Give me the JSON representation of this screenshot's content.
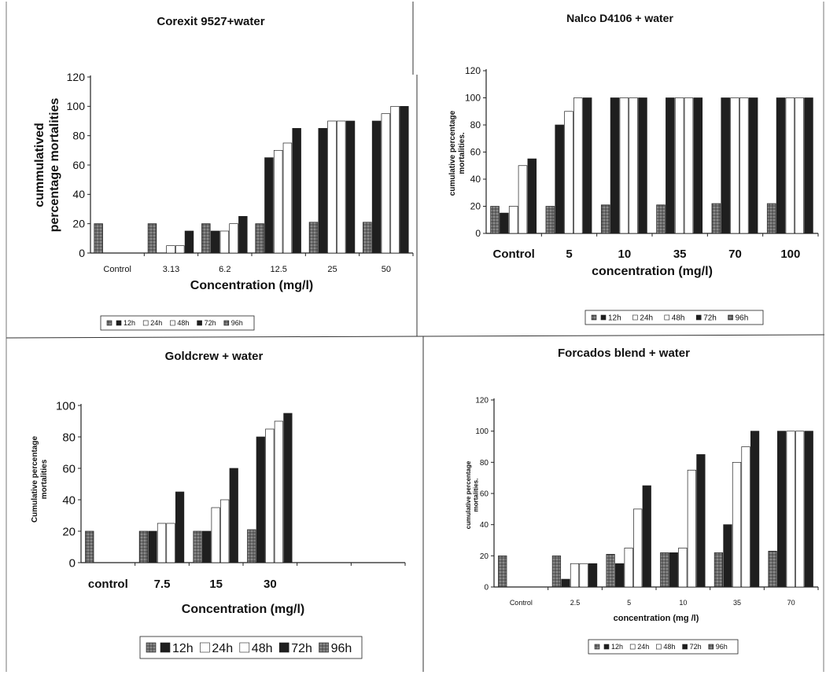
{
  "legend_labels": [
    "12h",
    "24h",
    "48h",
    "72h",
    "96h"
  ],
  "colors": {
    "dark": "#1f1f1f",
    "white": "#ffffff",
    "hatch": "#8a8a8a",
    "hatch_line": "#333333"
  },
  "chart_data": [
    {
      "type": "bar",
      "title": "Corexit 9527+water",
      "xlabel": "Concentration (mg/l)",
      "ylabel": [
        "cummulatived",
        "percentage mortalities"
      ],
      "categories": [
        "Control",
        "3.13",
        "6.2",
        "12.5",
        "25",
        "50"
      ],
      "ylim": [
        0,
        120
      ],
      "yticks": [
        0,
        20,
        40,
        60,
        80,
        100,
        120
      ],
      "legend_placement": "bottom-left",
      "series": [
        {
          "name": "12h",
          "values": [
            20,
            20,
            20,
            20,
            21,
            21
          ]
        },
        {
          "name": "24h",
          "values": [
            0,
            0,
            15,
            65,
            85,
            90
          ]
        },
        {
          "name": "48h",
          "values": [
            0,
            5,
            15,
            70,
            90,
            95
          ]
        },
        {
          "name": "72h",
          "values": [
            0,
            5,
            20,
            75,
            90,
            100
          ]
        },
        {
          "name": "96h",
          "values": [
            0,
            15,
            25,
            85,
            90,
            100
          ]
        }
      ]
    },
    {
      "type": "bar",
      "title": "Nalco D4106 + water",
      "xlabel": "concentration (mg/l)",
      "ylabel": [
        "cumulative percentage",
        "mortalities."
      ],
      "categories": [
        "Control",
        "5",
        "10",
        "35",
        "70",
        "100"
      ],
      "ylim": [
        0,
        120
      ],
      "yticks": [
        0,
        20,
        40,
        60,
        80,
        100,
        120
      ],
      "legend_placement": "bottom-right",
      "series": [
        {
          "name": "12h",
          "values": [
            20,
            20,
            21,
            21,
            22,
            22
          ]
        },
        {
          "name": "24h",
          "values": [
            15,
            80,
            100,
            100,
            100,
            100
          ]
        },
        {
          "name": "48h",
          "values": [
            20,
            90,
            100,
            100,
            100,
            100
          ]
        },
        {
          "name": "72h",
          "values": [
            50,
            100,
            100,
            100,
            100,
            100
          ]
        },
        {
          "name": "96h",
          "values": [
            55,
            100,
            100,
            100,
            100,
            100
          ]
        }
      ]
    },
    {
      "type": "bar",
      "title": "Goldcrew + water",
      "xlabel": "Concentration (mg/l)",
      "ylabel": [
        "Cumulative percentage",
        "mortalities"
      ],
      "categories": [
        "control",
        "7.5",
        "15",
        "30",
        "",
        ""
      ],
      "ylim": [
        0,
        100
      ],
      "yticks": [
        0,
        20,
        40,
        60,
        80,
        100
      ],
      "legend_placement": "bottom",
      "series": [
        {
          "name": "12h",
          "values": [
            20,
            20,
            20,
            21,
            0,
            0
          ]
        },
        {
          "name": "24h",
          "values": [
            0,
            20,
            20,
            80,
            0,
            0
          ]
        },
        {
          "name": "48h",
          "values": [
            0,
            25,
            35,
            85,
            0,
            0
          ]
        },
        {
          "name": "72h",
          "values": [
            0,
            25,
            40,
            90,
            0,
            0
          ]
        },
        {
          "name": "96h",
          "values": [
            0,
            45,
            60,
            95,
            0,
            0
          ]
        }
      ]
    },
    {
      "type": "bar",
      "title": "Forcados blend + water",
      "xlabel": "concentration (mg /l)",
      "ylabel": [
        "cumulative percentage",
        "mortalities."
      ],
      "categories": [
        "Control",
        "2.5",
        "5",
        "10",
        "35",
        "70"
      ],
      "ylim": [
        0,
        120
      ],
      "yticks": [
        0,
        20,
        40,
        60,
        80,
        100,
        120
      ],
      "legend_placement": "bottom",
      "series": [
        {
          "name": "12h",
          "values": [
            20,
            20,
            21,
            22,
            22,
            23
          ]
        },
        {
          "name": "24h",
          "values": [
            0,
            5,
            15,
            22,
            40,
            100
          ]
        },
        {
          "name": "48h",
          "values": [
            0,
            15,
            25,
            25,
            80,
            100
          ]
        },
        {
          "name": "72h",
          "values": [
            0,
            15,
            50,
            75,
            90,
            100
          ]
        },
        {
          "name": "96h",
          "values": [
            0,
            15,
            65,
            85,
            100,
            100
          ]
        }
      ]
    }
  ]
}
